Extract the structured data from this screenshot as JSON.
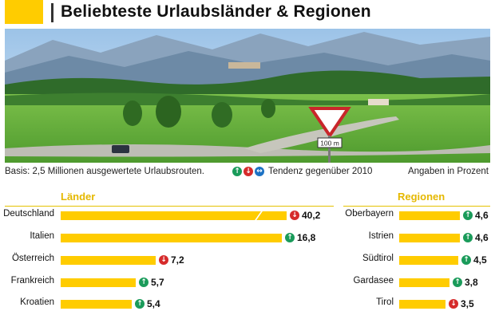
{
  "header": {
    "title": "Beliebteste Urlaubsländer & Regionen"
  },
  "info": {
    "basis": "Basis: 2,5 Millionen ausgewertete Urlaubsrouten.",
    "tendency": "Tendenz gegenüber 2010",
    "unit": "Angaben in Prozent"
  },
  "photo": {
    "sign": "100 m"
  },
  "colors": {
    "accent": "#ffcc00",
    "heading": "#e5b800",
    "up": "#1a9b5a",
    "down": "#d62b2b",
    "same": "#1d72c4"
  },
  "chart_data": [
    {
      "type": "bar",
      "title": "Länder",
      "categories": [
        "Deutschland",
        "Italien",
        "Österreich",
        "Frankreich",
        "Kroatien"
      ],
      "values": [
        40.2,
        16.8,
        7.2,
        5.7,
        5.4
      ],
      "labels": [
        "40,2",
        "16,8",
        "7,2",
        "5,7",
        "5,4"
      ],
      "trend": [
        "down",
        "up",
        "down",
        "up",
        "up"
      ],
      "axis_break": [
        "Deutschland"
      ]
    },
    {
      "type": "bar",
      "title": "Regionen",
      "categories": [
        "Oberbayern",
        "Istrien",
        "Südtirol",
        "Gardasee",
        "Tirol"
      ],
      "values": [
        4.6,
        4.6,
        4.5,
        3.8,
        3.5
      ],
      "labels": [
        "4,6",
        "4,6",
        "4,5",
        "3,8",
        "3,5"
      ],
      "trend": [
        "up",
        "up",
        "up",
        "up",
        "down"
      ]
    }
  ]
}
